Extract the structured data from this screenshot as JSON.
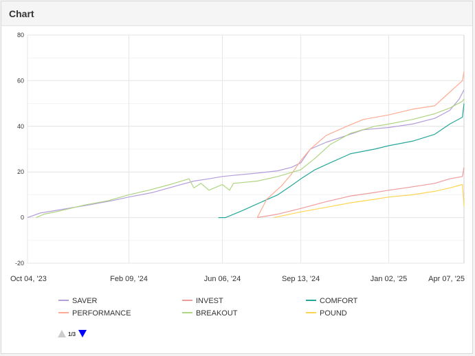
{
  "panel": {
    "title": "Chart"
  },
  "legend_nav": {
    "page": "1/3",
    "up": "triangle-up-icon",
    "down": "triangle-down-icon"
  },
  "colors": {
    "grid": "#e6e6e6",
    "nav_active": "#0000ff",
    "nav_inactive": "#cccccc"
  },
  "chart_data": {
    "type": "line",
    "title": "",
    "xlabel": "",
    "ylabel": "",
    "ylim": [
      -20,
      80
    ],
    "yticks": [
      -20,
      0,
      20,
      40,
      60,
      80
    ],
    "xlim": [
      "2023-10-04",
      "2025-04-07"
    ],
    "xticks": [
      {
        "label": "Oct 04, '23",
        "date": "2023-10-04"
      },
      {
        "label": "Feb 09, '24",
        "date": "2024-02-09"
      },
      {
        "label": "Jun 06, '24",
        "date": "2024-06-06"
      },
      {
        "label": "Sep 13, '24",
        "date": "2024-09-13"
      },
      {
        "label": "Jan 02, '25",
        "date": "2025-01-02"
      },
      {
        "label": "Apr 07, '25",
        "date": "2025-04-07"
      }
    ],
    "grid": true,
    "legend_position": "bottom",
    "series": [
      {
        "name": "SAVER",
        "color": "#b39ddb",
        "points": [
          [
            "2023-10-04",
            0
          ],
          [
            "2023-10-20",
            2
          ],
          [
            "2023-11-15",
            3.5
          ],
          [
            "2023-12-20",
            5.5
          ],
          [
            "2024-01-20",
            7.5
          ],
          [
            "2024-02-09",
            9
          ],
          [
            "2024-03-10",
            11
          ],
          [
            "2024-04-10",
            14
          ],
          [
            "2024-05-01",
            16
          ],
          [
            "2024-05-20",
            17
          ],
          [
            "2024-06-06",
            18
          ],
          [
            "2024-06-20",
            18.5
          ],
          [
            "2024-07-20",
            19.5
          ],
          [
            "2024-08-15",
            20.5
          ],
          [
            "2024-09-01",
            22
          ],
          [
            "2024-09-13",
            24
          ],
          [
            "2024-09-25",
            30
          ],
          [
            "2024-10-15",
            33
          ],
          [
            "2024-11-10",
            36
          ],
          [
            "2024-12-01",
            38.5
          ],
          [
            "2025-01-02",
            39.5
          ],
          [
            "2025-02-01",
            41
          ],
          [
            "2025-03-01",
            43.5
          ],
          [
            "2025-03-20",
            47
          ],
          [
            "2025-04-01",
            52
          ],
          [
            "2025-04-07",
            56
          ]
        ]
      },
      {
        "name": "INVEST",
        "color": "#ef9a9a",
        "points": [
          [
            "2024-07-20",
            0
          ],
          [
            "2024-08-15",
            1.5
          ],
          [
            "2024-09-13",
            4
          ],
          [
            "2024-10-15",
            7
          ],
          [
            "2024-11-15",
            9.5
          ],
          [
            "2024-12-15",
            11
          ],
          [
            "2025-01-02",
            12
          ],
          [
            "2025-02-01",
            13.5
          ],
          [
            "2025-03-01",
            15
          ],
          [
            "2025-03-20",
            17
          ],
          [
            "2025-04-05",
            18
          ],
          [
            "2025-04-07",
            22
          ]
        ]
      },
      {
        "name": "COMFORT",
        "color": "#26a69a",
        "points": [
          [
            "2024-06-01",
            0
          ],
          [
            "2024-06-10",
            0
          ],
          [
            "2024-07-01",
            3
          ],
          [
            "2024-07-20",
            6
          ],
          [
            "2024-08-15",
            10
          ],
          [
            "2024-09-01",
            14
          ],
          [
            "2024-09-13",
            17
          ],
          [
            "2024-10-01",
            21
          ],
          [
            "2024-10-20",
            24
          ],
          [
            "2024-11-15",
            28
          ],
          [
            "2024-12-15",
            30
          ],
          [
            "2025-01-02",
            31.5
          ],
          [
            "2025-02-01",
            33.5
          ],
          [
            "2025-03-01",
            36.5
          ],
          [
            "2025-03-20",
            41
          ],
          [
            "2025-04-05",
            44
          ],
          [
            "2025-04-07",
            50
          ]
        ]
      },
      {
        "name": "PERFORMANCE",
        "color": "#ffab91",
        "points": [
          [
            "2024-07-20",
            0
          ],
          [
            "2024-08-01",
            8
          ],
          [
            "2024-08-20",
            14
          ],
          [
            "2024-09-01",
            19
          ],
          [
            "2024-09-13",
            25
          ],
          [
            "2024-09-25",
            30
          ],
          [
            "2024-10-15",
            36
          ],
          [
            "2024-11-10",
            40
          ],
          [
            "2024-12-01",
            43
          ],
          [
            "2025-01-02",
            45
          ],
          [
            "2025-02-01",
            47.5
          ],
          [
            "2025-03-01",
            49
          ],
          [
            "2025-03-20",
            55
          ],
          [
            "2025-04-05",
            60
          ],
          [
            "2025-04-07",
            64
          ]
        ]
      },
      {
        "name": "BREAKOUT",
        "color": "#aed581",
        "points": [
          [
            "2023-10-15",
            0
          ],
          [
            "2023-10-25",
            1.5
          ],
          [
            "2023-11-15",
            3
          ],
          [
            "2023-12-15",
            5.5
          ],
          [
            "2024-01-15",
            7.5
          ],
          [
            "2024-02-09",
            10
          ],
          [
            "2024-03-05",
            12
          ],
          [
            "2024-04-01",
            14.5
          ],
          [
            "2024-04-25",
            17
          ],
          [
            "2024-05-01",
            13
          ],
          [
            "2024-05-10",
            15
          ],
          [
            "2024-05-20",
            12
          ],
          [
            "2024-06-06",
            14.5
          ],
          [
            "2024-06-15",
            12
          ],
          [
            "2024-06-20",
            15
          ],
          [
            "2024-07-20",
            16
          ],
          [
            "2024-08-15",
            18
          ],
          [
            "2024-09-13",
            21
          ],
          [
            "2024-10-01",
            26
          ],
          [
            "2024-10-20",
            32
          ],
          [
            "2024-11-15",
            37
          ],
          [
            "2024-12-15",
            40
          ],
          [
            "2025-01-02",
            41
          ],
          [
            "2025-02-01",
            43
          ],
          [
            "2025-03-01",
            45.5
          ],
          [
            "2025-03-20",
            48
          ],
          [
            "2025-04-05",
            51
          ],
          [
            "2025-04-07",
            52
          ]
        ]
      },
      {
        "name": "POUND",
        "color": "#ffd54f",
        "points": [
          [
            "2024-08-10",
            0
          ],
          [
            "2024-09-13",
            2.5
          ],
          [
            "2024-10-15",
            4.5
          ],
          [
            "2024-11-15",
            6.5
          ],
          [
            "2024-12-15",
            8
          ],
          [
            "2025-01-02",
            9
          ],
          [
            "2025-02-01",
            10
          ],
          [
            "2025-03-01",
            11.5
          ],
          [
            "2025-03-20",
            13
          ],
          [
            "2025-04-05",
            14.5
          ],
          [
            "2025-04-07",
            5
          ]
        ]
      }
    ]
  }
}
